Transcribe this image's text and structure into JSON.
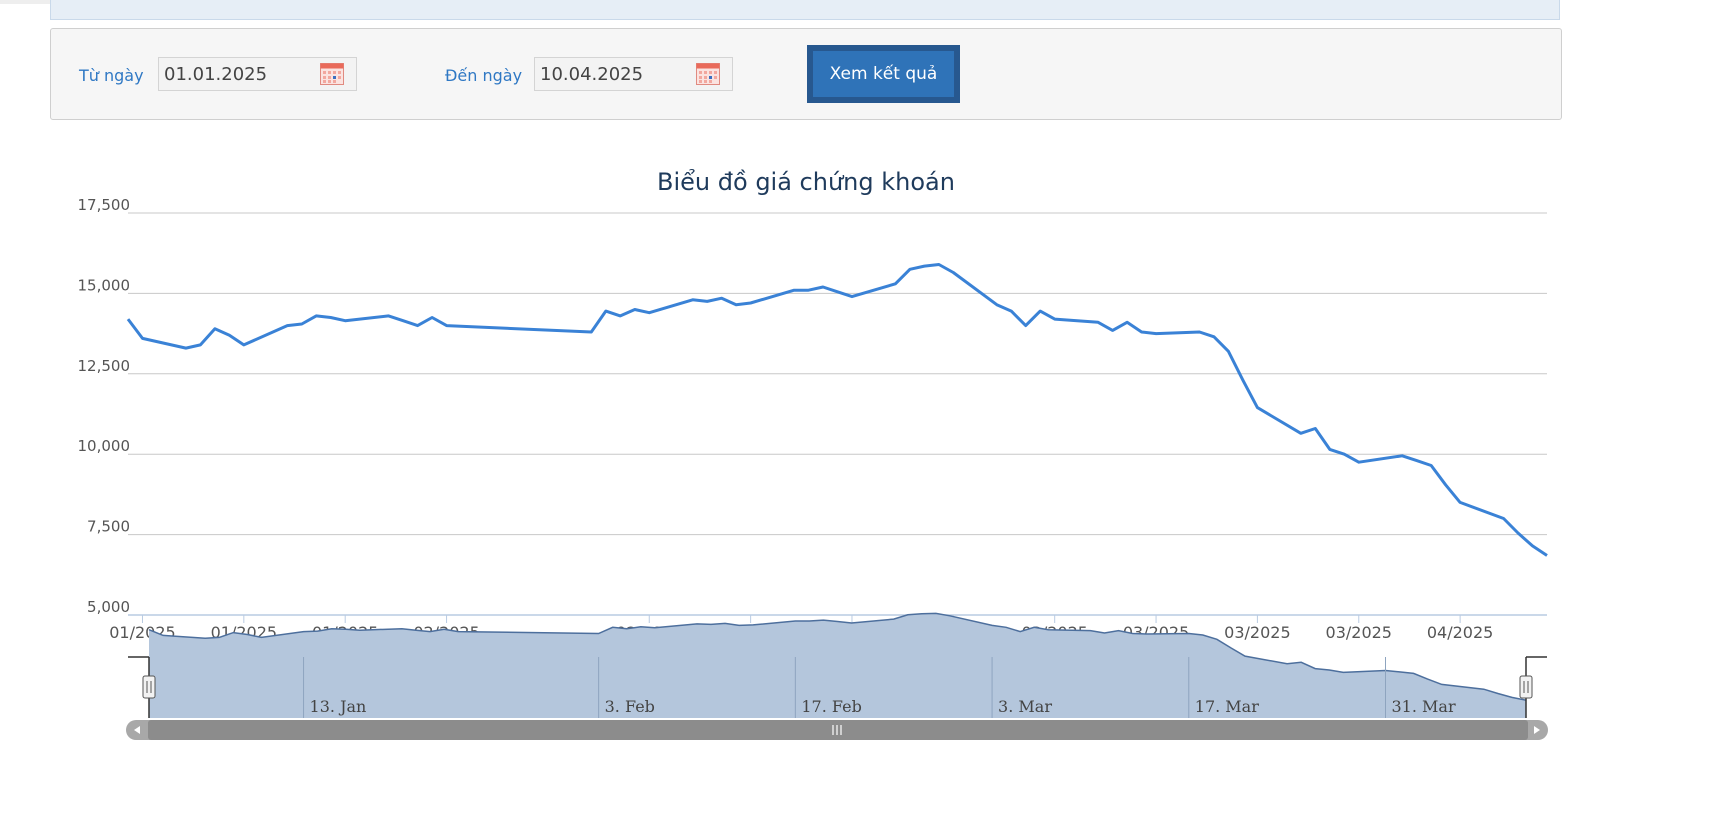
{
  "filter": {
    "from_label": "Từ ngày",
    "from_value": "01.01.2025",
    "to_label": "Đến ngày",
    "to_value": "10.04.2025",
    "submit_label": "Xem kết quả"
  },
  "colors": {
    "line": "#3a82d6",
    "navigator_fill": "#b4c6dc",
    "navigator_line": "#4d6f9d",
    "label": "#2f78c4",
    "button": "#2f73b8"
  },
  "chart_data": {
    "type": "line",
    "title": "Biểu đồ giá chứng khoán",
    "ylim": [
      5000,
      17500
    ],
    "yticks": [
      5000,
      7500,
      10000,
      12500,
      15000,
      17500
    ],
    "ytick_labels": [
      "5,000",
      "7,500",
      "10,000",
      "12,500",
      "15,000",
      "17,500"
    ],
    "xlim": [
      "2025-01-02",
      "2025-04-10"
    ],
    "x_ticks": [
      {
        "date": "2025-01-03",
        "label": "01/2025"
      },
      {
        "date": "2025-01-10",
        "label": "01/2025"
      },
      {
        "date": "2025-01-17",
        "label": "01/2025"
      },
      {
        "date": "2025-01-24",
        "label": "02/2025"
      },
      {
        "date": "2025-02-07",
        "label": "02/2025"
      },
      {
        "date": "2025-02-14",
        "label": "02/2025"
      },
      {
        "date": "2025-02-21",
        "label": "02/2025"
      },
      {
        "date": "2025-02-28",
        "label": "03/2025"
      },
      {
        "date": "2025-03-07",
        "label": "03/2025"
      },
      {
        "date": "2025-03-14",
        "label": "03/2025"
      },
      {
        "date": "2025-03-21",
        "label": "03/2025"
      },
      {
        "date": "2025-03-28",
        "label": "03/2025"
      },
      {
        "date": "2025-04-04",
        "label": "04/2025"
      }
    ],
    "navigator_ticks": [
      {
        "date": "2025-01-13",
        "label": "13. Jan"
      },
      {
        "date": "2025-02-03",
        "label": "3. Feb"
      },
      {
        "date": "2025-02-17",
        "label": "17. Feb"
      },
      {
        "date": "2025-03-03",
        "label": "3. Mar"
      },
      {
        "date": "2025-03-17",
        "label": "17. Mar"
      },
      {
        "date": "2025-03-31",
        "label": "31. Mar"
      }
    ],
    "grid": true,
    "legend": "none",
    "series": [
      {
        "x": [
          "2025-01-02",
          "2025-01-03",
          "2025-01-06",
          "2025-01-07",
          "2025-01-08",
          "2025-01-09",
          "2025-01-10",
          "2025-01-13",
          "2025-01-14",
          "2025-01-15",
          "2025-01-16",
          "2025-01-17",
          "2025-01-20",
          "2025-01-21",
          "2025-01-22",
          "2025-01-23",
          "2025-01-24",
          "2025-02-03",
          "2025-02-04",
          "2025-02-05",
          "2025-02-06",
          "2025-02-07",
          "2025-02-10",
          "2025-02-11",
          "2025-02-12",
          "2025-02-13",
          "2025-02-14",
          "2025-02-17",
          "2025-02-18",
          "2025-02-19",
          "2025-02-20",
          "2025-02-21",
          "2025-02-24",
          "2025-02-25",
          "2025-02-26",
          "2025-02-27",
          "2025-02-28",
          "2025-03-03",
          "2025-03-04",
          "2025-03-05",
          "2025-03-06",
          "2025-03-07",
          "2025-03-10",
          "2025-03-11",
          "2025-03-12",
          "2025-03-13",
          "2025-03-14",
          "2025-03-17",
          "2025-03-18",
          "2025-03-19",
          "2025-03-20",
          "2025-03-21",
          "2025-03-24",
          "2025-03-25",
          "2025-03-26",
          "2025-03-27",
          "2025-03-28",
          "2025-03-31",
          "2025-04-01",
          "2025-04-02",
          "2025-04-03",
          "2025-04-04",
          "2025-04-07",
          "2025-04-08",
          "2025-04-09",
          "2025-04-10"
        ],
        "values": [
          14200,
          13600,
          13300,
          13400,
          13900,
          13700,
          13400,
          14000,
          14050,
          14300,
          14250,
          14150,
          14300,
          14150,
          14000,
          14250,
          14000,
          13800,
          14450,
          14300,
          14500,
          14400,
          14800,
          14750,
          14850,
          14650,
          14700,
          15100,
          15100,
          15200,
          15050,
          14900,
          15300,
          15750,
          15850,
          15900,
          15650,
          14650,
          14450,
          14000,
          14450,
          14200,
          14100,
          13850,
          14100,
          13800,
          13750,
          13800,
          13650,
          13200,
          12300,
          11450,
          10650,
          10800,
          10150,
          10000,
          9750,
          9950,
          9800,
          9650,
          9050,
          8500,
          8000,
          7550,
          7150,
          6850
        ]
      }
    ]
  }
}
